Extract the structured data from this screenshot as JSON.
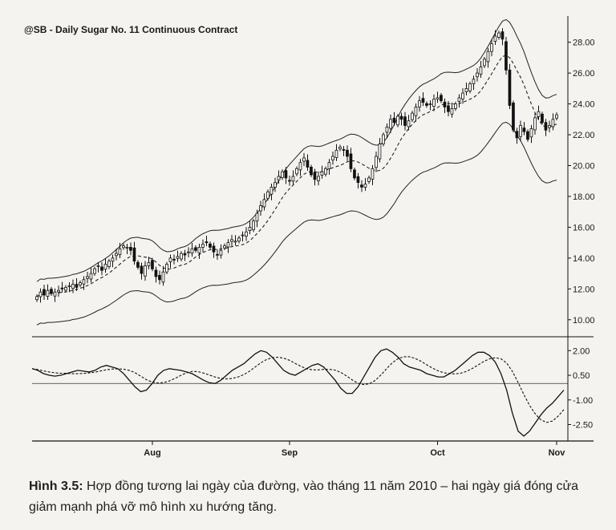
{
  "title": "@SB - Daily  Sugar No. 11 Continuous Contract",
  "caption": {
    "label": "Hình 3.5:",
    "text": " Hợp đồng tương lai ngày của đường, vào tháng 11 năm 2010 – hai ngày giá đóng cửa giảm mạnh phá vỡ mô hình xu hướng tăng."
  },
  "colors": {
    "up": "#ffffff",
    "down": "#111111",
    "line": "#222222",
    "background": "#f4f3ef"
  },
  "chart_data": {
    "type": "candlestick",
    "price_axis": {
      "ylim": [
        9,
        29.7
      ],
      "ticks": [
        "10.00",
        "12.00",
        "14.00",
        "16.00",
        "18.00",
        "20.00",
        "22.00",
        "24.00",
        "26.00",
        "28.00"
      ]
    },
    "oscillator_axis": {
      "ylim": [
        -3.5,
        2.6
      ],
      "ticks": [
        "2.00",
        "0.50",
        "-1.00",
        "-2.50"
      ]
    },
    "month_labels": [
      {
        "label": "Aug",
        "bar": 32
      },
      {
        "label": "Sep",
        "bar": 70
      },
      {
        "label": "Oct",
        "bar": 111
      },
      {
        "label": "Nov",
        "bar": 150
      }
    ],
    "closes": [
      11.5,
      11.8,
      11.6,
      11.9,
      11.7,
      11.8,
      11.9,
      12.0,
      12.1,
      12.2,
      12.3,
      12.1,
      12.4,
      12.6,
      12.8,
      13.0,
      13.3,
      13.5,
      13.2,
      13.6,
      13.8,
      14.0,
      14.3,
      14.6,
      14.8,
      14.7,
      14.5,
      13.8,
      13.4,
      13.0,
      13.5,
      13.7,
      13.3,
      12.8,
      12.6,
      13.1,
      13.6,
      14.0,
      13.9,
      14.1,
      14.3,
      14.2,
      14.4,
      14.6,
      14.5,
      14.7,
      14.9,
      15.0,
      14.7,
      14.4,
      14.2,
      14.5,
      14.8,
      15.0,
      15.2,
      15.1,
      15.3,
      15.5,
      15.7,
      16.0,
      16.4,
      16.9,
      17.4,
      17.8,
      18.3,
      18.6,
      18.9,
      19.3,
      19.6,
      19.2,
      19.0,
      19.3,
      19.8,
      20.2,
      20.5,
      19.9,
      19.4,
      19.1,
      19.3,
      19.6,
      19.8,
      20.2,
      20.6,
      21.0,
      21.2,
      21.0,
      20.6,
      19.8,
      19.2,
      18.9,
      18.6,
      18.8,
      19.2,
      19.8,
      20.6,
      21.4,
      22.0,
      22.5,
      23.0,
      22.8,
      23.2,
      23.0,
      22.6,
      22.9,
      23.4,
      23.8,
      24.2,
      24.1,
      23.9,
      24.0,
      24.3,
      24.4,
      24.2,
      23.8,
      23.5,
      23.7,
      24.0,
      24.4,
      24.7,
      25.0,
      25.3,
      25.6,
      26.0,
      26.4,
      26.9,
      27.4,
      27.9,
      28.4,
      28.6,
      28.2,
      26.2,
      23.9,
      22.3,
      21.8,
      22.6,
      22.2,
      21.7,
      22.4,
      23.1,
      23.5,
      22.8,
      22.3,
      22.6,
      23.0,
      23.3
    ],
    "oscillator": [
      0.9,
      0.8,
      0.6,
      0.5,
      0.45,
      0.5,
      0.6,
      0.7,
      0.8,
      0.75,
      0.7,
      0.8,
      1.0,
      1.1,
      1.0,
      0.9,
      0.6,
      0.2,
      -0.2,
      -0.5,
      -0.4,
      0.0,
      0.5,
      0.8,
      0.9,
      0.85,
      0.8,
      0.7,
      0.6,
      0.4,
      0.2,
      0.05,
      0.0,
      0.2,
      0.5,
      0.8,
      1.0,
      1.2,
      1.5,
      1.8,
      2.0,
      1.9,
      1.6,
      1.2,
      0.8,
      0.6,
      0.5,
      0.7,
      0.9,
      1.1,
      1.2,
      1.0,
      0.6,
      0.2,
      -0.3,
      -0.6,
      -0.6,
      -0.2,
      0.4,
      1.0,
      1.6,
      2.0,
      2.1,
      1.9,
      1.6,
      1.2,
      1.0,
      0.9,
      0.8,
      0.6,
      0.5,
      0.4,
      0.4,
      0.6,
      0.8,
      1.1,
      1.4,
      1.7,
      1.9,
      1.9,
      1.7,
      1.3,
      0.6,
      -0.4,
      -1.8,
      -2.9,
      -3.2,
      -2.9,
      -2.4,
      -1.9,
      -1.5,
      -1.2,
      -0.8,
      -0.4
    ]
  }
}
